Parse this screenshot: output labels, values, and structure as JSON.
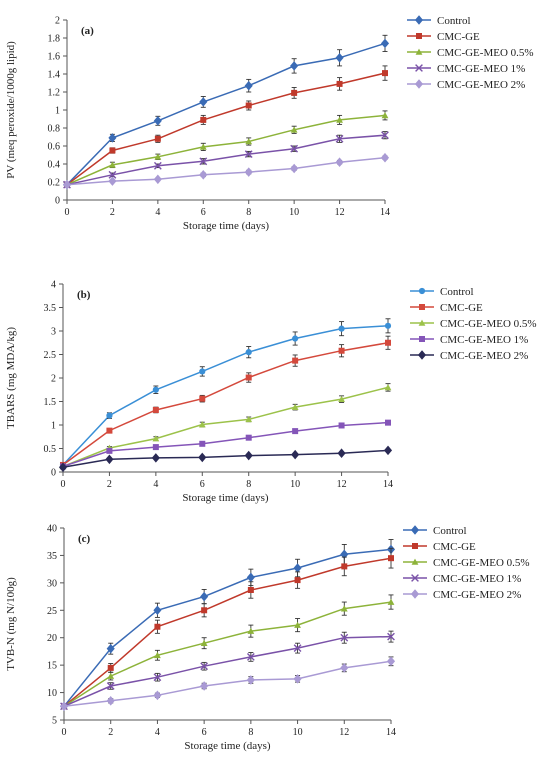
{
  "chart_data": [
    {
      "type": "line",
      "panel_label": "(a)",
      "title": "",
      "xlabel": "Storage time (days)",
      "ylabel": "PV (meq peroxide/1000g lipid)",
      "xlim": [
        0,
        14
      ],
      "ylim": [
        0,
        2
      ],
      "x_ticks": [
        "0",
        "2",
        "4",
        "6",
        "8",
        "10",
        "12",
        "14"
      ],
      "y_ticks": [
        "0",
        "0.2",
        "0.4",
        "0.6",
        "0.8",
        "1",
        "1.2",
        "1.4",
        "1.6",
        "1.8",
        "2"
      ],
      "x": [
        0,
        2,
        4,
        6,
        8,
        10,
        12,
        14
      ],
      "grid": false,
      "legend_position": "top-right",
      "series": [
        {
          "name": "Control",
          "color": "#3a6bb5",
          "marker": "diamond",
          "values": [
            0.17,
            0.69,
            0.88,
            1.09,
            1.27,
            1.49,
            1.58,
            1.74
          ],
          "errors": [
            0.02,
            0.04,
            0.05,
            0.06,
            0.07,
            0.08,
            0.09,
            0.09
          ]
        },
        {
          "name": "CMC-GE",
          "color": "#c0392b",
          "marker": "square",
          "values": [
            0.17,
            0.55,
            0.68,
            0.89,
            1.05,
            1.19,
            1.29,
            1.41
          ],
          "errors": [
            0.02,
            0.03,
            0.04,
            0.05,
            0.05,
            0.06,
            0.07,
            0.08
          ]
        },
        {
          "name": "CMC-GE-MEO 0.5%",
          "color": "#8db33a",
          "marker": "triangle",
          "values": [
            0.17,
            0.39,
            0.48,
            0.59,
            0.65,
            0.78,
            0.89,
            0.94
          ],
          "errors": [
            0.02,
            0.03,
            0.03,
            0.04,
            0.04,
            0.04,
            0.05,
            0.05
          ]
        },
        {
          "name": "CMC-GE-MEO 1%",
          "color": "#7a52a8",
          "marker": "x",
          "values": [
            0.17,
            0.28,
            0.38,
            0.43,
            0.51,
            0.57,
            0.68,
            0.72
          ],
          "errors": [
            0.02,
            0.02,
            0.02,
            0.03,
            0.03,
            0.03,
            0.04,
            0.04
          ]
        },
        {
          "name": "CMC-GE-MEO 2%",
          "color": "#a99ad4",
          "marker": "diamond",
          "values": [
            0.17,
            0.21,
            0.23,
            0.28,
            0.31,
            0.35,
            0.42,
            0.47
          ],
          "errors": [
            0.01,
            0.01,
            0.01,
            0.02,
            0.02,
            0.02,
            0.02,
            0.02
          ]
        }
      ]
    },
    {
      "type": "line",
      "panel_label": "(b)",
      "title": "",
      "xlabel": "Storage time (days)",
      "ylabel": "TBARS (mg MDA/kg)",
      "xlim": [
        0,
        14
      ],
      "ylim": [
        0,
        4
      ],
      "x_ticks": [
        "0",
        "2",
        "4",
        "6",
        "8",
        "10",
        "12",
        "14"
      ],
      "y_ticks": [
        "0",
        "0.5",
        "1",
        "1.5",
        "2",
        "2.5",
        "3",
        "3.5",
        "4"
      ],
      "x": [
        0,
        2,
        4,
        6,
        8,
        10,
        12,
        14
      ],
      "grid": false,
      "legend_position": "right",
      "series": [
        {
          "name": "Control",
          "color": "#3a8fd6",
          "marker": "circle",
          "values": [
            0.15,
            1.2,
            1.75,
            2.14,
            2.55,
            2.84,
            3.05,
            3.11
          ],
          "errors": [
            0.03,
            0.06,
            0.08,
            0.1,
            0.12,
            0.14,
            0.15,
            0.15
          ]
        },
        {
          "name": "CMC-GE",
          "color": "#d4493c",
          "marker": "square",
          "values": [
            0.15,
            0.88,
            1.32,
            1.56,
            2.01,
            2.37,
            2.58,
            2.75
          ],
          "errors": [
            0.03,
            0.04,
            0.06,
            0.07,
            0.1,
            0.12,
            0.13,
            0.14
          ]
        },
        {
          "name": "CMC-GE-MEO 0.5%",
          "color": "#9cc24a",
          "marker": "triangle",
          "values": [
            0.12,
            0.51,
            0.71,
            1.01,
            1.12,
            1.38,
            1.55,
            1.8
          ],
          "errors": [
            0.02,
            0.03,
            0.04,
            0.05,
            0.05,
            0.06,
            0.07,
            0.08
          ]
        },
        {
          "name": "CMC-GE-MEO 1%",
          "color": "#8455b8",
          "marker": "square",
          "values": [
            0.12,
            0.45,
            0.53,
            0.6,
            0.73,
            0.87,
            0.99,
            1.05
          ],
          "errors": [
            0.02,
            0.02,
            0.02,
            0.03,
            0.03,
            0.04,
            0.04,
            0.04
          ]
        },
        {
          "name": "CMC-GE-MEO 2%",
          "color": "#2a2a55",
          "marker": "diamond",
          "values": [
            0.1,
            0.27,
            0.3,
            0.31,
            0.35,
            0.37,
            0.4,
            0.46
          ],
          "errors": [
            0.01,
            0.01,
            0.01,
            0.01,
            0.02,
            0.02,
            0.02,
            0.02
          ]
        }
      ]
    },
    {
      "type": "line",
      "panel_label": "(c)",
      "title": "",
      "xlabel": "Storage time (days)",
      "ylabel": "TVB-N (mg N/100g)",
      "xlim": [
        0,
        14
      ],
      "ylim": [
        5,
        40
      ],
      "x_ticks": [
        "0",
        "2",
        "4",
        "6",
        "8",
        "10",
        "12",
        "14"
      ],
      "y_ticks": [
        "5",
        "10",
        "15",
        "20",
        "25",
        "30",
        "35",
        "40"
      ],
      "x": [
        0,
        2,
        4,
        6,
        8,
        10,
        12,
        14
      ],
      "grid": false,
      "legend_position": "top-right",
      "series": [
        {
          "name": "Control",
          "color": "#3a6bb5",
          "marker": "diamond",
          "values": [
            7.5,
            18.0,
            25.0,
            27.5,
            31.0,
            32.7,
            35.2,
            36.1
          ],
          "errors": [
            0.4,
            1.0,
            1.3,
            1.3,
            1.5,
            1.6,
            1.8,
            1.8
          ]
        },
        {
          "name": "CMC-GE",
          "color": "#c0392b",
          "marker": "square",
          "values": [
            7.5,
            14.5,
            22.0,
            25.0,
            28.7,
            30.5,
            33.0,
            34.5
          ],
          "errors": [
            0.4,
            0.8,
            1.2,
            1.2,
            1.5,
            1.5,
            1.7,
            1.8
          ]
        },
        {
          "name": "CMC-GE-MEO 0.5%",
          "color": "#8db33a",
          "marker": "triangle",
          "values": [
            7.5,
            13.0,
            16.8,
            19.0,
            21.2,
            22.3,
            25.3,
            26.5
          ],
          "errors": [
            0.4,
            0.7,
            0.9,
            1.0,
            1.1,
            1.2,
            1.2,
            1.3
          ]
        },
        {
          "name": "CMC-GE-MEO 1%",
          "color": "#7a52a8",
          "marker": "x",
          "values": [
            7.5,
            11.2,
            12.8,
            14.8,
            16.5,
            18.1,
            20.0,
            20.2
          ],
          "errors": [
            0.3,
            0.6,
            0.7,
            0.7,
            0.8,
            0.9,
            1.0,
            1.0
          ]
        },
        {
          "name": "CMC-GE-MEO 2%",
          "color": "#a99ad4",
          "marker": "diamond",
          "values": [
            7.5,
            8.5,
            9.5,
            11.2,
            12.3,
            12.5,
            14.5,
            15.7
          ],
          "errors": [
            0.3,
            0.4,
            0.4,
            0.5,
            0.6,
            0.6,
            0.7,
            0.8
          ]
        }
      ]
    }
  ]
}
